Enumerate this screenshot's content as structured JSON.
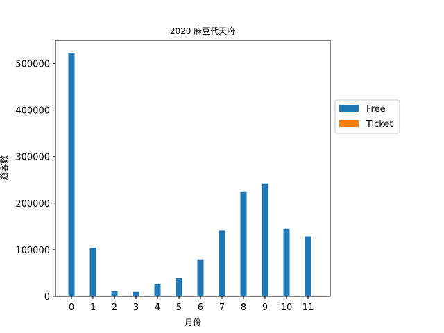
{
  "chart_data": {
    "type": "bar",
    "title": "2020 麻豆代天府",
    "xlabel": "月份",
    "ylabel": "遊客數",
    "categories": [
      "0",
      "1",
      "2",
      "3",
      "4",
      "5",
      "6",
      "7",
      "8",
      "9",
      "10",
      "11"
    ],
    "series": [
      {
        "name": "Free",
        "color": "#1f77b4",
        "values": [
          523000,
          104000,
          11000,
          9500,
          26000,
          39000,
          78000,
          141000,
          224000,
          242000,
          145000,
          129000
        ]
      },
      {
        "name": "Ticket",
        "color": "#ff7f0e",
        "values": [
          0,
          0,
          0,
          0,
          0,
          0,
          0,
          0,
          0,
          0,
          0,
          0
        ]
      }
    ],
    "ylim": [
      0,
      550000
    ],
    "yticks": [
      0,
      100000,
      200000,
      300000,
      400000,
      500000
    ],
    "ytick_labels": [
      "0",
      "100000",
      "200000",
      "300000",
      "400000",
      "500000"
    ],
    "grid": false,
    "legend_position": "right, outside plot"
  }
}
